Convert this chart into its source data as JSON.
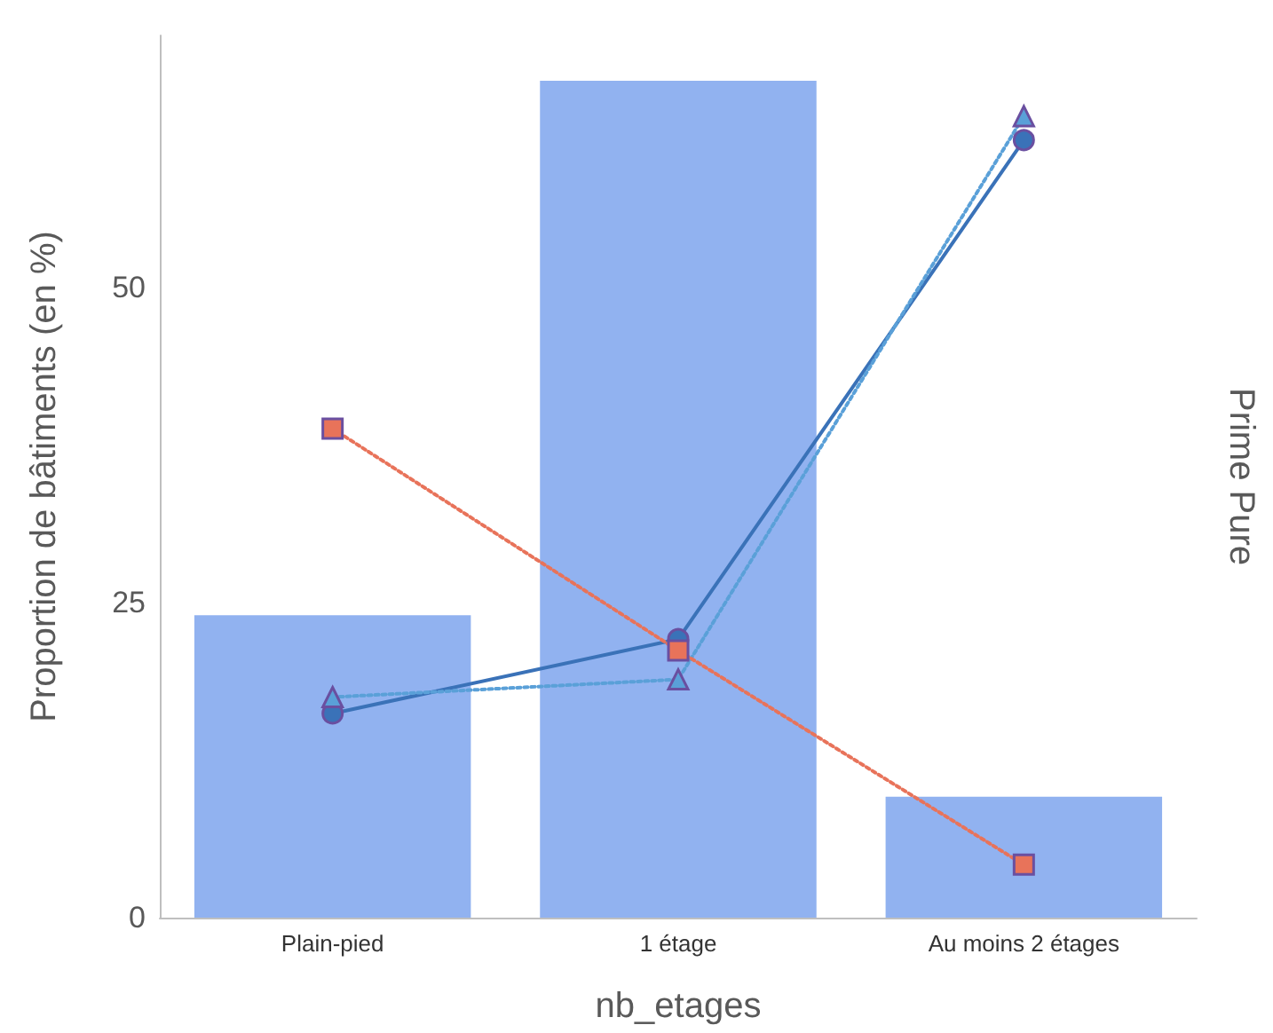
{
  "chart_data": {
    "type": "bar",
    "xlabel": "nb_etages",
    "ylabel": "Proportion de bâtiments (en %)",
    "y2label": "Prime Pure",
    "categories": [
      "Plain-pied",
      "1 étage",
      "Au moins 2 étages"
    ],
    "ylim": [
      0,
      70
    ],
    "yticks": [
      0,
      25,
      50
    ],
    "grid": false,
    "series": [
      {
        "color": "#91b2f0",
        "values": [
          24.0,
          66.4,
          9.6
        ]
      },
      {
        "type": "line",
        "color": "#3a72b8",
        "marker": "circle",
        "line_style": "solid",
        "values": [
          16.2,
          22.1,
          61.7
        ]
      },
      {
        "type": "line",
        "color": "#5aa0d8",
        "marker": "triangle",
        "line_style": "dotted",
        "values": [
          17.5,
          18.9,
          63.6
        ]
      },
      {
        "type": "line",
        "color": "#e8735a",
        "marker": "square",
        "line_style": "dotted",
        "values": [
          38.8,
          21.2,
          4.2
        ]
      }
    ]
  }
}
